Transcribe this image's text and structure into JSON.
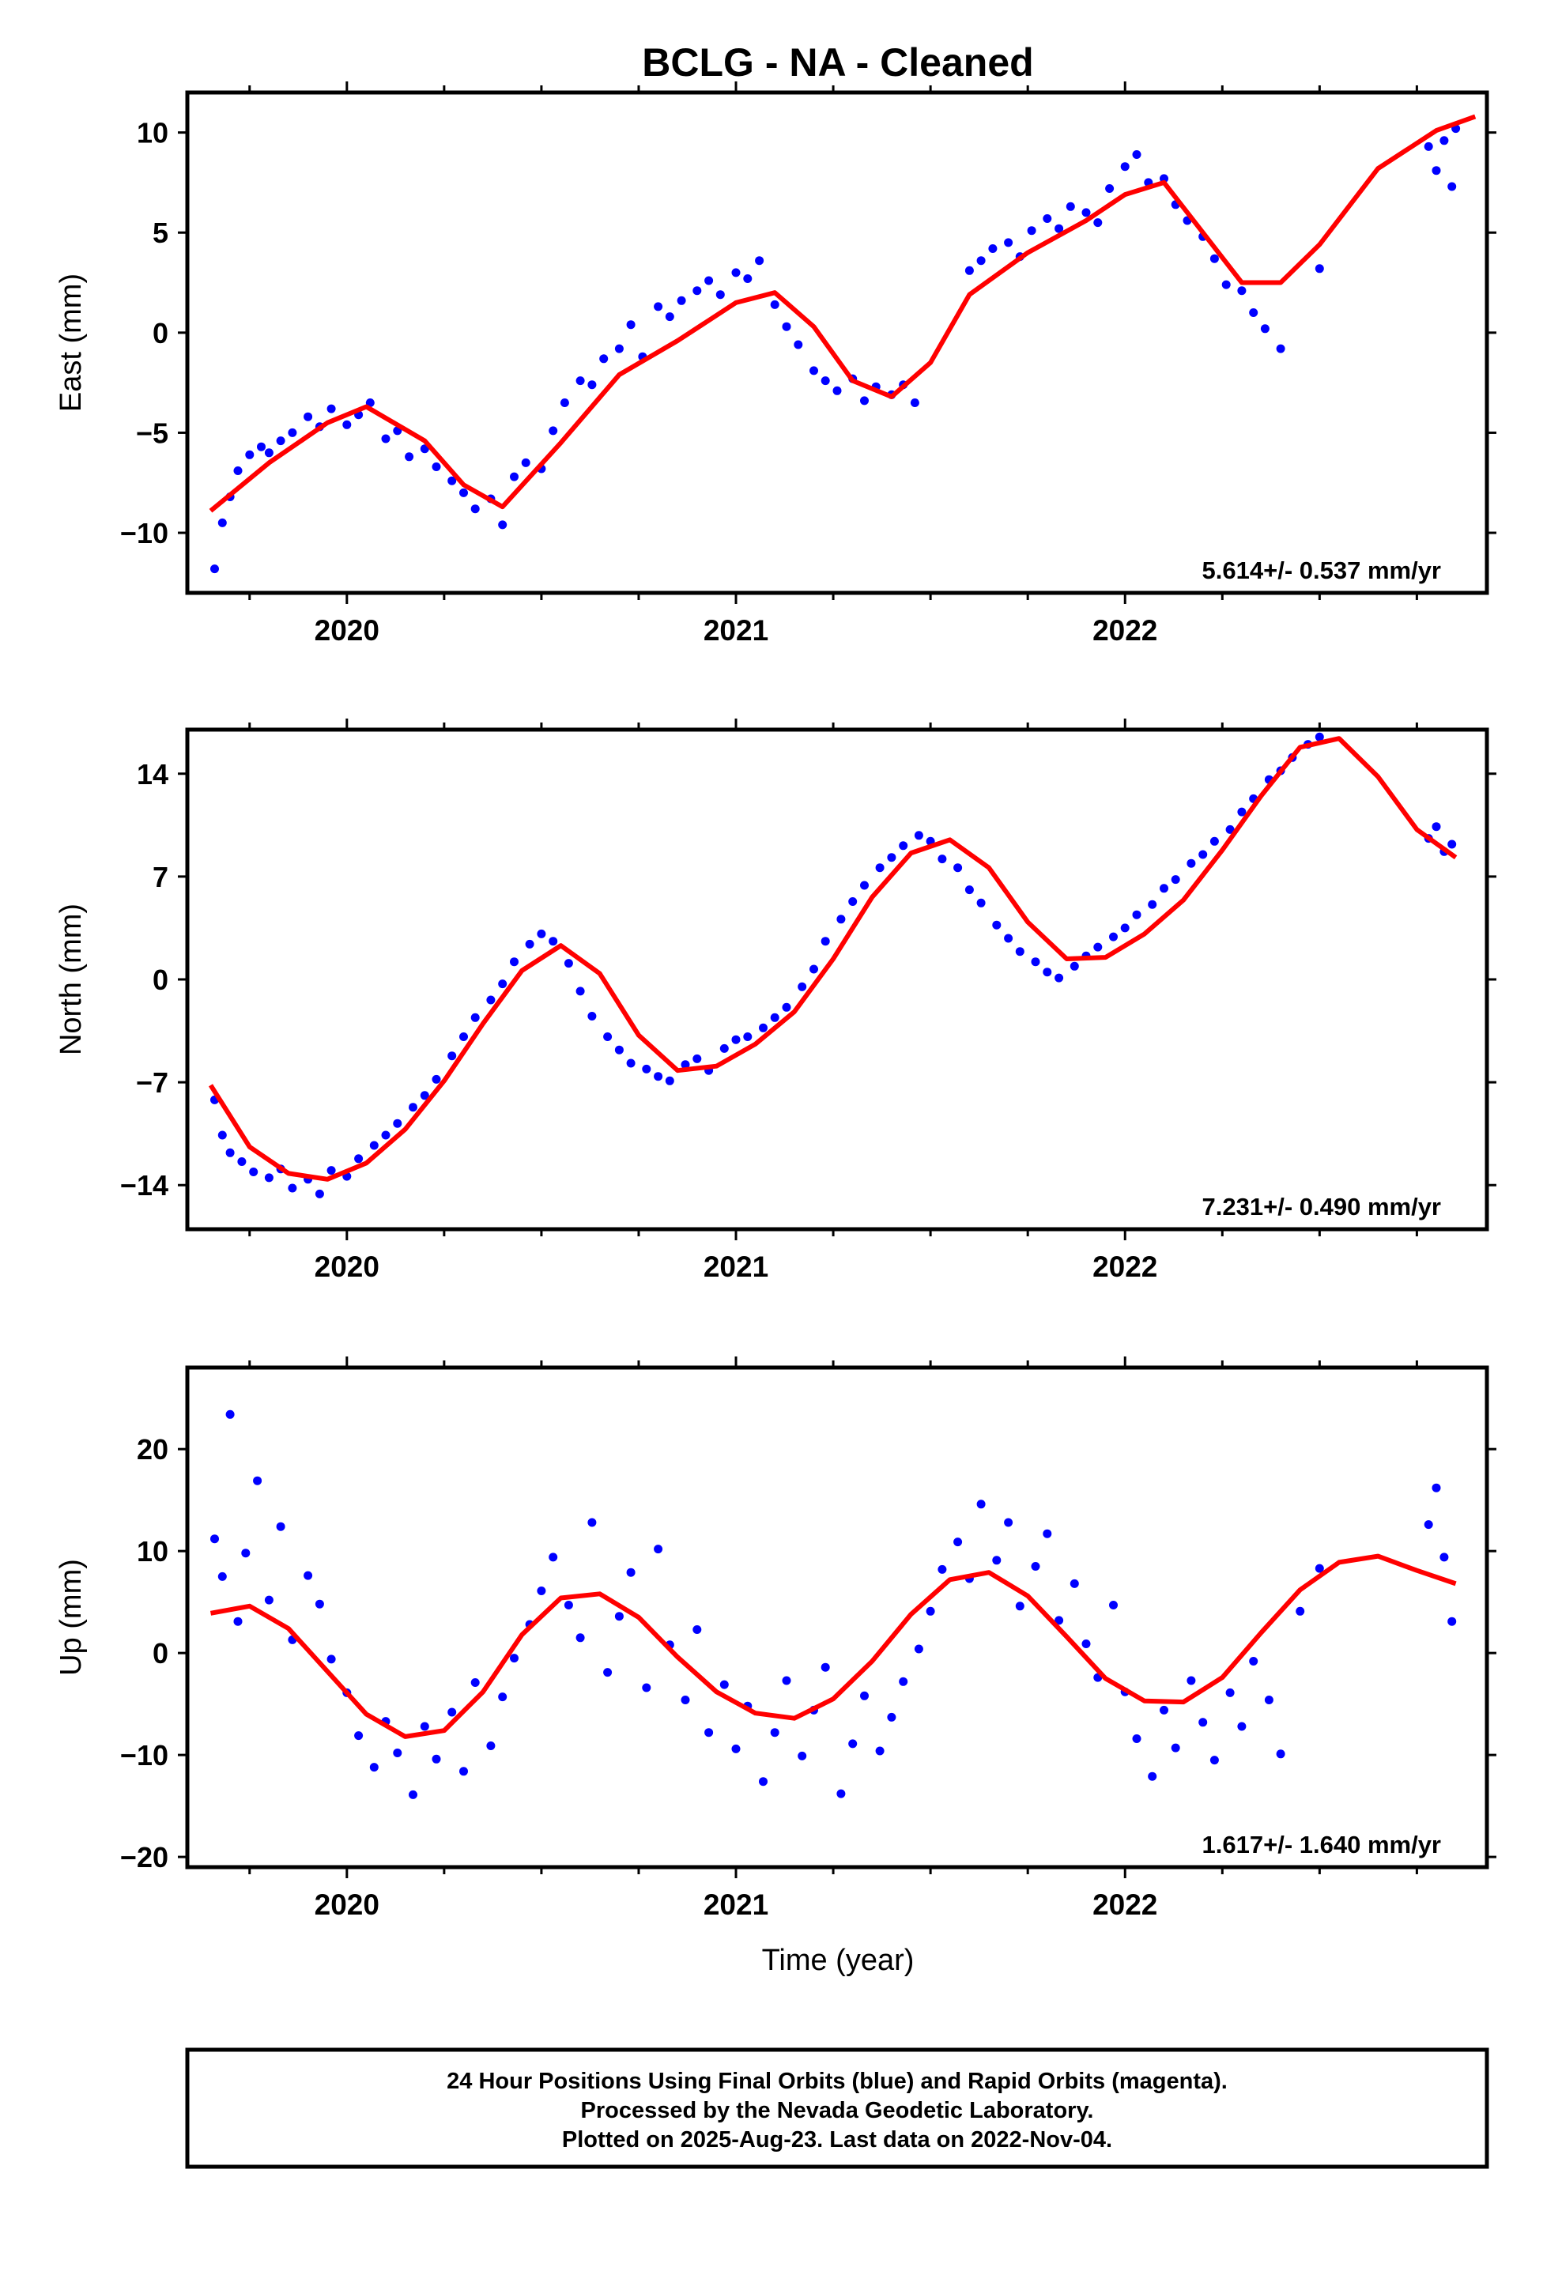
{
  "title": "BCLG  - NA - Cleaned",
  "xlabel": "Time (year)",
  "footer": {
    "line1": "24 Hour Positions Using Final Orbits (blue) and Rapid Orbits (magenta).",
    "line2": "Processed by the Nevada Geodetic Laboratory.",
    "line3": "Plotted on 2025-Aug-23. Last data on 2022-Nov-04."
  },
  "colors": {
    "points": "#0000ff",
    "fit": "#ff0000",
    "frame": "#000000"
  },
  "chart_data": [
    {
      "type": "scatter",
      "ylabel": "East (mm)",
      "rate": "5.614+/- 0.537 mm/yr",
      "xlim": [
        2019.59,
        2022.93
      ],
      "ylim": [
        -13,
        12
      ],
      "yticks": [
        -10,
        -5,
        0,
        5,
        10
      ],
      "xticks": [
        2020,
        2021,
        2022
      ],
      "xtick_labels": [
        "2020",
        "2021",
        "2022"
      ],
      "fit_curve": {
        "x": [
          2019.65,
          2019.8,
          2019.95,
          2020.05,
          2020.2,
          2020.3,
          2020.4,
          2020.55,
          2020.7,
          2020.85,
          2021.0,
          2021.1,
          2021.2,
          2021.3,
          2021.4,
          2021.5,
          2021.6,
          2021.75,
          2021.9,
          2022.0,
          2022.1,
          2022.2,
          2022.3,
          2022.4,
          2022.5,
          2022.65,
          2022.8,
          2022.9
        ],
        "y": [
          -8.9,
          -6.5,
          -4.5,
          -3.7,
          -5.4,
          -7.6,
          -8.7,
          -5.5,
          -2.1,
          -0.4,
          1.5,
          2.0,
          0.3,
          -2.4,
          -3.2,
          -1.5,
          1.9,
          4.0,
          5.6,
          6.9,
          7.5,
          5.0,
          2.5,
          2.5,
          4.4,
          8.2,
          10.1,
          10.8
        ]
      },
      "points": {
        "x": [
          2019.66,
          2019.68,
          2019.7,
          2019.72,
          2019.75,
          2019.78,
          2019.8,
          2019.83,
          2019.86,
          2019.9,
          2019.93,
          2019.96,
          2020.0,
          2020.03,
          2020.06,
          2020.1,
          2020.13,
          2020.16,
          2020.2,
          2020.23,
          2020.27,
          2020.3,
          2020.33,
          2020.37,
          2020.4,
          2020.43,
          2020.46,
          2020.5,
          2020.53,
          2020.56,
          2020.6,
          2020.63,
          2020.66,
          2020.7,
          2020.73,
          2020.76,
          2020.8,
          2020.83,
          2020.86,
          2020.9,
          2020.93,
          2020.96,
          2021.0,
          2021.03,
          2021.06,
          2021.1,
          2021.13,
          2021.16,
          2021.2,
          2021.23,
          2021.26,
          2021.3,
          2021.33,
          2021.36,
          2021.4,
          2021.43,
          2021.46,
          2021.6,
          2021.63,
          2021.66,
          2021.7,
          2021.73,
          2021.76,
          2021.8,
          2021.83,
          2021.86,
          2021.9,
          2021.93,
          2021.96,
          2022.0,
          2022.03,
          2022.06,
          2022.1,
          2022.13,
          2022.16,
          2022.2,
          2022.23,
          2022.26,
          2022.3,
          2022.33,
          2022.36,
          2022.4,
          2022.5,
          2022.78,
          2022.8,
          2022.82,
          2022.84,
          2022.85
        ],
        "y": [
          -11.8,
          -9.5,
          -8.2,
          -6.9,
          -6.1,
          -5.7,
          -6.0,
          -5.4,
          -5.0,
          -4.2,
          -4.7,
          -3.8,
          -4.6,
          -4.1,
          -3.5,
          -5.3,
          -4.9,
          -6.2,
          -5.8,
          -6.7,
          -7.4,
          -8.0,
          -8.8,
          -8.3,
          -9.6,
          -7.2,
          -6.5,
          -6.8,
          -4.9,
          -3.5,
          -2.4,
          -2.6,
          -1.3,
          -0.8,
          0.4,
          -1.2,
          1.3,
          0.8,
          1.6,
          2.1,
          2.6,
          1.9,
          3.0,
          2.7,
          3.6,
          1.4,
          0.3,
          -0.6,
          -1.9,
          -2.4,
          -2.9,
          -2.3,
          -3.4,
          -2.7,
          -3.1,
          -2.6,
          -3.5,
          3.1,
          3.6,
          4.2,
          4.5,
          3.8,
          5.1,
          5.7,
          5.2,
          6.3,
          6.0,
          5.5,
          7.2,
          8.3,
          8.9,
          7.5,
          7.7,
          6.4,
          5.6,
          4.8,
          3.7,
          2.4,
          2.1,
          1.0,
          0.2,
          -0.8,
          3.2,
          9.3,
          8.1,
          9.6,
          7.3,
          10.2
        ]
      }
    },
    {
      "type": "scatter",
      "ylabel": "North (mm)",
      "rate": "7.231+/- 0.490 mm/yr",
      "xlim": [
        2019.59,
        2022.93
      ],
      "ylim": [
        -17,
        17
      ],
      "yticks": [
        -14,
        -7,
        0,
        7,
        14
      ],
      "xticks": [
        2020,
        2021,
        2022
      ],
      "xtick_labels": [
        "2020",
        "2021",
        "2022"
      ],
      "fit_curve": {
        "x": [
          2019.65,
          2019.75,
          2019.85,
          2019.95,
          2020.05,
          2020.15,
          2020.25,
          2020.35,
          2020.45,
          2020.55,
          2020.65,
          2020.75,
          2020.85,
          2020.95,
          2021.05,
          2021.15,
          2021.25,
          2021.35,
          2021.45,
          2021.55,
          2021.65,
          2021.75,
          2021.85,
          2021.95,
          2022.05,
          2022.15,
          2022.25,
          2022.35,
          2022.45,
          2022.55,
          2022.65,
          2022.75,
          2022.85
        ],
        "y": [
          -7.2,
          -11.4,
          -13.2,
          -13.6,
          -12.5,
          -10.2,
          -6.9,
          -3.0,
          0.6,
          2.3,
          0.4,
          -3.8,
          -6.2,
          -5.9,
          -4.4,
          -2.2,
          1.4,
          5.6,
          8.6,
          9.5,
          7.6,
          3.9,
          1.4,
          1.5,
          3.1,
          5.4,
          8.8,
          12.5,
          15.8,
          16.4,
          13.8,
          10.2,
          8.3
        ]
      },
      "points": {
        "x": [
          2019.66,
          2019.68,
          2019.7,
          2019.73,
          2019.76,
          2019.8,
          2019.83,
          2019.86,
          2019.9,
          2019.93,
          2019.96,
          2020.0,
          2020.03,
          2020.07,
          2020.1,
          2020.13,
          2020.17,
          2020.2,
          2020.23,
          2020.27,
          2020.3,
          2020.33,
          2020.37,
          2020.4,
          2020.43,
          2020.47,
          2020.5,
          2020.53,
          2020.57,
          2020.6,
          2020.63,
          2020.67,
          2020.7,
          2020.73,
          2020.77,
          2020.8,
          2020.83,
          2020.87,
          2020.9,
          2020.93,
          2020.97,
          2021.0,
          2021.03,
          2021.07,
          2021.1,
          2021.13,
          2021.17,
          2021.2,
          2021.23,
          2021.27,
          2021.3,
          2021.33,
          2021.37,
          2021.4,
          2021.43,
          2021.47,
          2021.5,
          2021.53,
          2021.57,
          2021.6,
          2021.63,
          2021.67,
          2021.7,
          2021.73,
          2021.77,
          2021.8,
          2021.83,
          2021.87,
          2021.9,
          2021.93,
          2021.97,
          2022.0,
          2022.03,
          2022.07,
          2022.1,
          2022.13,
          2022.17,
          2022.2,
          2022.23,
          2022.27,
          2022.3,
          2022.33,
          2022.37,
          2022.4,
          2022.43,
          2022.47,
          2022.5,
          2022.78,
          2022.8,
          2022.82,
          2022.84
        ],
        "y": [
          -8.2,
          -10.6,
          -11.8,
          -12.4,
          -13.1,
          -13.5,
          -12.9,
          -14.2,
          -13.6,
          -14.6,
          -13.0,
          -13.4,
          -12.2,
          -11.3,
          -10.6,
          -9.8,
          -8.7,
          -7.9,
          -6.8,
          -5.2,
          -3.9,
          -2.6,
          -1.4,
          -0.3,
          1.2,
          2.4,
          3.1,
          2.6,
          1.1,
          -0.8,
          -2.5,
          -3.9,
          -4.8,
          -5.7,
          -6.1,
          -6.6,
          -6.9,
          -5.8,
          -5.4,
          -6.2,
          -4.7,
          -4.1,
          -3.9,
          -3.3,
          -2.6,
          -1.9,
          -0.5,
          0.7,
          2.6,
          4.1,
          5.3,
          6.4,
          7.6,
          8.3,
          9.1,
          9.8,
          9.4,
          8.2,
          7.6,
          6.1,
          5.2,
          3.7,
          2.8,
          1.9,
          1.2,
          0.5,
          0.1,
          0.9,
          1.6,
          2.2,
          2.9,
          3.5,
          4.4,
          5.1,
          6.2,
          6.8,
          7.9,
          8.5,
          9.4,
          10.2,
          11.4,
          12.3,
          13.6,
          14.2,
          15.1,
          16.0,
          16.5,
          9.6,
          10.4,
          8.7,
          9.2
        ]
      }
    },
    {
      "type": "scatter",
      "ylabel": "Up (mm)",
      "rate": "1.617+/- 1.640 mm/yr",
      "xlim": [
        2019.59,
        2022.93
      ],
      "ylim": [
        -21,
        28
      ],
      "yticks": [
        -20,
        -10,
        0,
        10,
        20
      ],
      "xticks": [
        2020,
        2021,
        2022
      ],
      "xtick_labels": [
        "2020",
        "2021",
        "2022"
      ],
      "fit_curve": {
        "x": [
          2019.65,
          2019.75,
          2019.85,
          2019.95,
          2020.05,
          2020.15,
          2020.25,
          2020.35,
          2020.45,
          2020.55,
          2020.65,
          2020.75,
          2020.85,
          2020.95,
          2021.05,
          2021.15,
          2021.25,
          2021.35,
          2021.45,
          2021.55,
          2021.65,
          2021.75,
          2021.85,
          2021.95,
          2022.05,
          2022.15,
          2022.25,
          2022.35,
          2022.45,
          2022.55,
          2022.65,
          2022.75,
          2022.85
        ],
        "y": [
          3.9,
          4.6,
          2.4,
          -1.8,
          -6.0,
          -8.2,
          -7.6,
          -3.8,
          1.8,
          5.4,
          5.8,
          3.5,
          -0.4,
          -3.8,
          -5.9,
          -6.4,
          -4.5,
          -0.8,
          3.8,
          7.2,
          7.9,
          5.6,
          1.6,
          -2.5,
          -4.7,
          -4.8,
          -2.4,
          2.0,
          6.2,
          8.9,
          9.5,
          8.1,
          6.8
        ]
      },
      "points": {
        "x": [
          2019.66,
          2019.68,
          2019.7,
          2019.72,
          2019.74,
          2019.77,
          2019.8,
          2019.83,
          2019.86,
          2019.9,
          2019.93,
          2019.96,
          2020.0,
          2020.03,
          2020.07,
          2020.1,
          2020.13,
          2020.17,
          2020.2,
          2020.23,
          2020.27,
          2020.3,
          2020.33,
          2020.37,
          2020.4,
          2020.43,
          2020.47,
          2020.5,
          2020.53,
          2020.57,
          2020.6,
          2020.63,
          2020.67,
          2020.7,
          2020.73,
          2020.77,
          2020.8,
          2020.83,
          2020.87,
          2020.9,
          2020.93,
          2020.97,
          2021.0,
          2021.03,
          2021.07,
          2021.1,
          2021.13,
          2021.17,
          2021.2,
          2021.23,
          2021.27,
          2021.3,
          2021.33,
          2021.37,
          2021.4,
          2021.43,
          2021.47,
          2021.5,
          2021.53,
          2021.57,
          2021.6,
          2021.63,
          2021.67,
          2021.7,
          2021.73,
          2021.77,
          2021.8,
          2021.83,
          2021.87,
          2021.9,
          2021.93,
          2021.97,
          2022.0,
          2022.03,
          2022.07,
          2022.1,
          2022.13,
          2022.17,
          2022.2,
          2022.23,
          2022.27,
          2022.3,
          2022.33,
          2022.37,
          2022.4,
          2022.45,
          2022.5,
          2022.78,
          2022.8,
          2022.82,
          2022.84
        ],
        "y": [
          11.2,
          7.5,
          23.4,
          3.1,
          9.8,
          16.9,
          5.2,
          12.4,
          1.3,
          7.6,
          4.8,
          -0.6,
          -3.9,
          -8.1,
          -11.2,
          -6.7,
          -9.8,
          -13.9,
          -7.2,
          -10.4,
          -5.8,
          -11.6,
          -2.9,
          -9.1,
          -4.3,
          -0.5,
          2.8,
          6.1,
          9.4,
          4.7,
          1.5,
          12.8,
          -1.9,
          3.6,
          7.9,
          -3.4,
          10.2,
          0.8,
          -4.6,
          2.3,
          -7.8,
          -3.1,
          -9.4,
          -5.2,
          -12.6,
          -7.8,
          -2.7,
          -10.1,
          -5.6,
          -1.4,
          -13.8,
          -8.9,
          -4.2,
          -9.6,
          -6.3,
          -2.8,
          0.4,
          4.1,
          8.2,
          10.9,
          7.3,
          14.6,
          9.1,
          12.8,
          4.6,
          8.5,
          11.7,
          3.2,
          6.8,
          0.9,
          -2.4,
          4.7,
          -3.8,
          -8.4,
          -12.1,
          -5.6,
          -9.3,
          -2.7,
          -6.8,
          -10.5,
          -3.9,
          -7.2,
          -0.8,
          -4.6,
          -9.9,
          4.1,
          8.3,
          12.6,
          16.2,
          9.4,
          3.1
        ]
      }
    }
  ]
}
